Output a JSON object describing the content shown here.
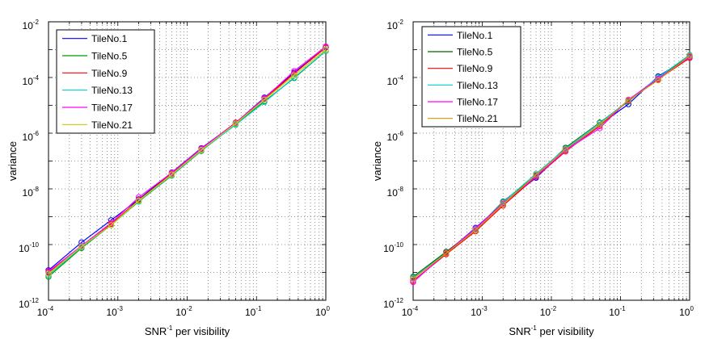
{
  "chart_data": [
    {
      "type": "line",
      "xscale": "log",
      "yscale": "log",
      "xlabel_base": "SNR",
      "xlabel_sup": "-1",
      "xlabel_rest": " per visibility",
      "ylabel": "variance",
      "xlim": [
        0.0001,
        1
      ],
      "ylim": [
        1e-12,
        0.01
      ],
      "x_ticks": [
        {
          "base": "10",
          "exp": "-4"
        },
        {
          "base": "10",
          "exp": "-3"
        },
        {
          "base": "10",
          "exp": "-2"
        },
        {
          "base": "10",
          "exp": "-1"
        },
        {
          "base": "10",
          "exp": "0"
        }
      ],
      "y_ticks": [
        {
          "base": "10",
          "exp": "-12"
        },
        {
          "base": "10",
          "exp": "-10"
        },
        {
          "base": "10",
          "exp": "-8"
        },
        {
          "base": "10",
          "exp": "-6"
        },
        {
          "base": "10",
          "exp": "-4"
        },
        {
          "base": "10",
          "exp": "-2"
        }
      ],
      "grid": true,
      "legend_position": "top-left",
      "marker": "circle",
      "x": [
        0.0001,
        0.0003,
        0.0008,
        0.002,
        0.006,
        0.016,
        0.05,
        0.13,
        0.35,
        1
      ],
      "series": [
        {
          "name": "TileNo.1",
          "color": "#0000ff",
          "values": [
            1.2e-11,
            1.2e-10,
            7.5e-10,
            4.2e-09,
            3.9e-08,
            2.9e-07,
            2.3e-06,
            1.9e-05,
            0.00015,
            0.0012
          ]
        },
        {
          "name": "TileNo.5",
          "color": "#009900",
          "values": [
            7e-12,
            7.5e-11,
            5e-10,
            3.5e-09,
            3e-08,
            2.3e-07,
            2.1e-06,
            1.4e-05,
            9.5e-05,
            0.0009
          ]
        },
        {
          "name": "TileNo.9",
          "color": "#ff0000",
          "values": [
            1e-11,
            8e-11,
            5.5e-10,
            4e-09,
            3.5e-08,
            2.7e-07,
            2.4e-06,
            1.7e-05,
            0.00014,
            0.0012
          ]
        },
        {
          "name": "TileNo.13",
          "color": "#00cccc",
          "values": [
            8e-12,
            8e-11,
            5e-10,
            3.6e-09,
            3.1e-08,
            2.4e-07,
            2e-06,
            1.3e-05,
            0.0001,
            0.0009
          ]
        },
        {
          "name": "TileNo.17",
          "color": "#ff00ff",
          "values": [
            1.1e-11,
            9e-11,
            6e-10,
            5e-09,
            3.8e-08,
            2.8e-07,
            2.3e-06,
            1.8e-05,
            0.00017,
            0.0013
          ]
        },
        {
          "name": "TileNo.21",
          "color": "#cccc00",
          "values": [
            9e-12,
            8.5e-11,
            5e-10,
            3.8e-09,
            3.3e-08,
            2.5e-07,
            2.2e-06,
            1.6e-05,
            0.00012,
            0.001
          ]
        }
      ]
    },
    {
      "type": "line",
      "xscale": "log",
      "yscale": "log",
      "xlabel_base": "SNR",
      "xlabel_sup": "-1",
      "xlabel_rest": " per visibility",
      "ylabel": "variance",
      "xlim": [
        0.0001,
        1
      ],
      "ylim": [
        1e-12,
        0.01
      ],
      "x_ticks": [
        {
          "base": "10",
          "exp": "-4"
        },
        {
          "base": "10",
          "exp": "-3"
        },
        {
          "base": "10",
          "exp": "-2"
        },
        {
          "base": "10",
          "exp": "-1"
        },
        {
          "base": "10",
          "exp": "0"
        }
      ],
      "y_ticks": [
        {
          "base": "10",
          "exp": "-12"
        },
        {
          "base": "10",
          "exp": "-10"
        },
        {
          "base": "10",
          "exp": "-8"
        },
        {
          "base": "10",
          "exp": "-6"
        },
        {
          "base": "10",
          "exp": "-4"
        },
        {
          "base": "10",
          "exp": "-2"
        }
      ],
      "grid": true,
      "legend_position": "top-left",
      "marker": "circle",
      "x": [
        0.0001,
        0.0003,
        0.0008,
        0.002,
        0.006,
        0.016,
        0.05,
        0.13,
        0.35,
        1
      ],
      "series": [
        {
          "name": "TileNo.1",
          "color": "#0000ff",
          "values": [
            6e-12,
            5e-11,
            4e-10,
            3e-09,
            2.5e-08,
            2.5e-07,
            2e-06,
            1.1e-05,
            0.00011,
            0.00055
          ]
        },
        {
          "name": "TileNo.5",
          "color": "#006600",
          "values": [
            7e-12,
            5.5e-11,
            3.5e-10,
            3.5e-09,
            3e-08,
            3e-07,
            2.4e-06,
            1.4e-05,
            0.0001,
            0.0006
          ]
        },
        {
          "name": "TileNo.9",
          "color": "#ff0000",
          "values": [
            5e-12,
            4.5e-11,
            3e-10,
            2.5e-09,
            2.7e-08,
            2.2e-07,
            1.8e-06,
            1.5e-05,
            8.5e-05,
            0.0005
          ]
        },
        {
          "name": "TileNo.13",
          "color": "#00cccc",
          "values": [
            6.5e-12,
            5e-11,
            3.5e-10,
            3.3e-09,
            3.5e-08,
            2.8e-07,
            2.3e-06,
            1.5e-05,
            0.0001,
            0.00065
          ]
        },
        {
          "name": "TileNo.17",
          "color": "#ff00ff",
          "values": [
            4.5e-12,
            5e-11,
            3.8e-10,
            3e-09,
            2.8e-08,
            2.4e-07,
            1.5e-06,
            1.6e-05,
            9e-05,
            0.00055
          ]
        },
        {
          "name": "TileNo.21",
          "color": "#cc9900",
          "values": [
            6e-12,
            4.8e-11,
            3.3e-10,
            2.8e-09,
            3.2e-08,
            2.6e-07,
            2e-06,
            1.5e-05,
            8e-05,
            0.0006
          ]
        }
      ]
    }
  ]
}
